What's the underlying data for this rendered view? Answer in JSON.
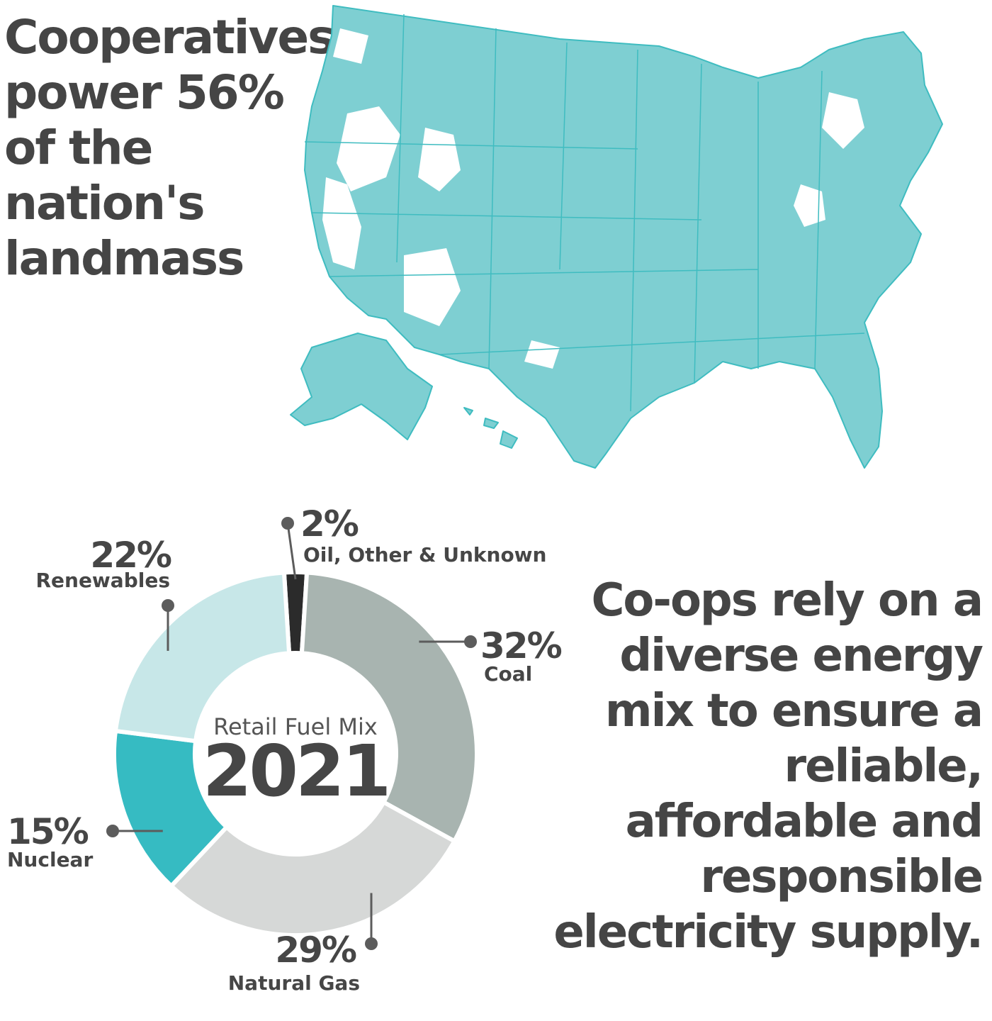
{
  "headline": "Cooperatives\npower 56%\nof the\nnation's\nlandmass",
  "tagline": "Co-ops rely on a\ndiverse energy\nmix to ensure a\nreliable,\naffordable and\nresponsible\nelectricity supply.",
  "colors": {
    "map_fill": "#7ecfd2",
    "map_outline": "#3fbcc0",
    "text": "#464646",
    "coal": "#a8b4b0",
    "natural_gas": "#d6d8d7",
    "nuclear": "#36bbc2",
    "renewables": "#c7e7e8",
    "oil_other": "#2b2b2b"
  },
  "chart_data": {
    "type": "pie",
    "title": "Retail Fuel Mix",
    "center_value": "2021",
    "categories": [
      "Coal",
      "Natural Gas",
      "Nuclear",
      "Renewables",
      "Oil, Other & Unknown"
    ],
    "values": [
      32,
      29,
      15,
      22,
      2
    ],
    "percent_labels": [
      "32%",
      "29%",
      "15%",
      "22%",
      "2%"
    ],
    "colors": [
      "#a8b4b0",
      "#d6d8d7",
      "#36bbc2",
      "#c7e7e8",
      "#2b2b2b"
    ],
    "donut": true
  }
}
